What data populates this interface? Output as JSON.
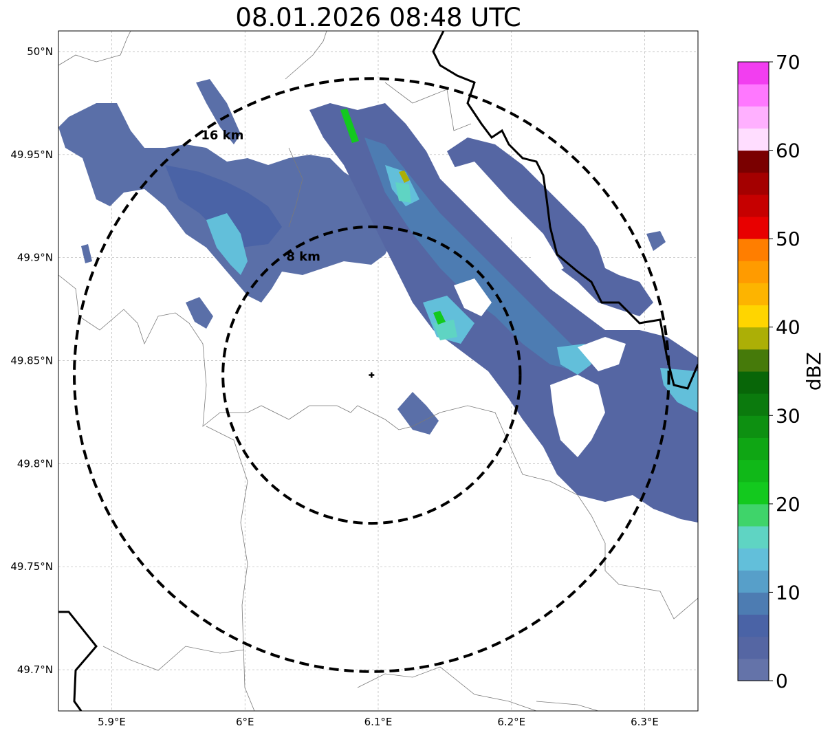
{
  "title": "08.01.2026 08:48 UTC",
  "lat_ticks": [
    "50°N",
    "49.95°N",
    "49.9°N",
    "49.85°N",
    "49.8°N",
    "49.75°N",
    "49.7°N"
  ],
  "lon_ticks": [
    "5.9°E",
    "6°E",
    "6.1°E",
    "6.2°E",
    "6.3°E"
  ],
  "range_rings": [
    {
      "label": "16 km",
      "range_km": 16
    },
    {
      "label": "8 km",
      "range_km": 8
    }
  ],
  "radar_site": {
    "lon": 6.095,
    "lat": 49.843
  },
  "extent": {
    "lon_min": 5.86,
    "lon_max": 6.34,
    "lat_min": 49.68,
    "lat_max": 50.01
  },
  "colorbar": {
    "label": "dBZ",
    "tick_labels": [
      "0",
      "10",
      "20",
      "30",
      "40",
      "50",
      "60",
      "70"
    ],
    "levels_min": 0,
    "levels_max": 70,
    "colors": [
      "#6473a9",
      "#5566a3",
      "#4a63a6",
      "#4d7cb2",
      "#579fc9",
      "#62bfda",
      "#5fd4c3",
      "#3fd46a",
      "#13c91e",
      "#10b818",
      "#0fa614",
      "#0d9011",
      "#0b7a0d",
      "#086608",
      "#467a0a",
      "#acaf06",
      "#ffd500",
      "#fdb400",
      "#ff9b00",
      "#ff7e00",
      "#e80000",
      "#c60000",
      "#a40000",
      "#7a0000",
      "#ffddff",
      "#ffb0ff",
      "#ff78ff",
      "#f23ef0"
    ]
  }
}
